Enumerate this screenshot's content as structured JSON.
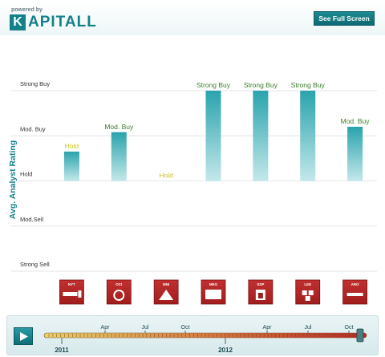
{
  "header": {
    "powered_by": "powered by",
    "logo_initial": "K",
    "logo_rest": "APITALL",
    "fullscreen_label": "See Full Screen"
  },
  "colors": {
    "brand": "#14808a",
    "bar_top": "#2aa3ac",
    "bar_bottom": "#c3e8ea",
    "hold_label": "#d4c22a",
    "buy_label": "#3a7d2a",
    "ticker_tile": "#a11d1d"
  },
  "chart_data": {
    "type": "bar",
    "ylabel": "Avg. Analyst Rating",
    "y_ticks": [
      "Strong Sell",
      "Mod.Sell",
      "Hold",
      "Mod. Buy",
      "Strong Buy"
    ],
    "ylim": [
      1,
      5
    ],
    "grid": true,
    "categories": [
      "NYT",
      "OCI",
      "MNI",
      "MEG",
      "SSP",
      "LEE",
      "ARO"
    ],
    "values": [
      3.65,
      4.08,
      3.0,
      5.0,
      5.0,
      5.0,
      4.2
    ],
    "value_labels": [
      "Hold",
      "Mod. Buy",
      "Hold",
      "Strong Buy",
      "Strong Buy",
      "Strong Buy",
      "Mod. Buy"
    ],
    "logos": [
      "NYT",
      "OCI",
      "MNI",
      "MEG",
      "SSP",
      "LEE",
      "ARO"
    ],
    "logo_icons": [
      "newspaper-icon",
      "circle-logo-icon",
      "mountain-icon",
      "media-general-icon",
      "building-icon",
      "diamond-blocks-icon",
      "text-block-icon"
    ]
  },
  "timeline": {
    "play_label": "play-icon",
    "month_labels": [
      "Apr",
      "Jul",
      "Oct",
      "Apr",
      "Jul",
      "Oct"
    ],
    "year_labels": [
      "2011",
      "2012"
    ],
    "position": 0.98
  }
}
